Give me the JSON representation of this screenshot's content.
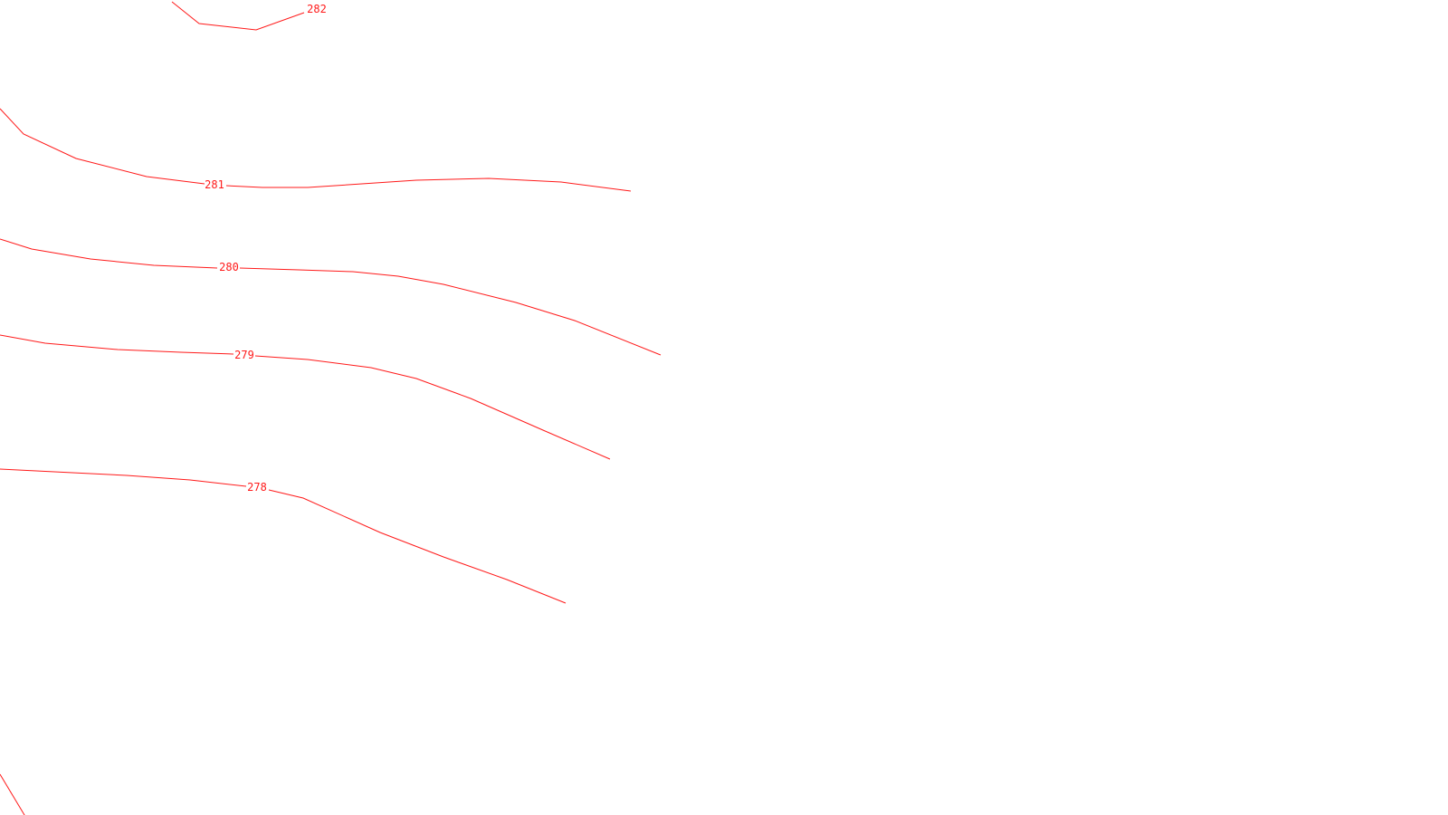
{
  "map": {
    "background_color": "#ffffff",
    "contour_color": "#ff1a1a",
    "contour_interval": 1,
    "contours": [
      {
        "level": 282,
        "label": "282"
      },
      {
        "level": 281,
        "label": "281"
      },
      {
        "level": 280,
        "label": "280"
      },
      {
        "level": 279,
        "label": "279"
      },
      {
        "level": 278,
        "label": "278"
      },
      {
        "level": null,
        "label": ""
      }
    ]
  }
}
